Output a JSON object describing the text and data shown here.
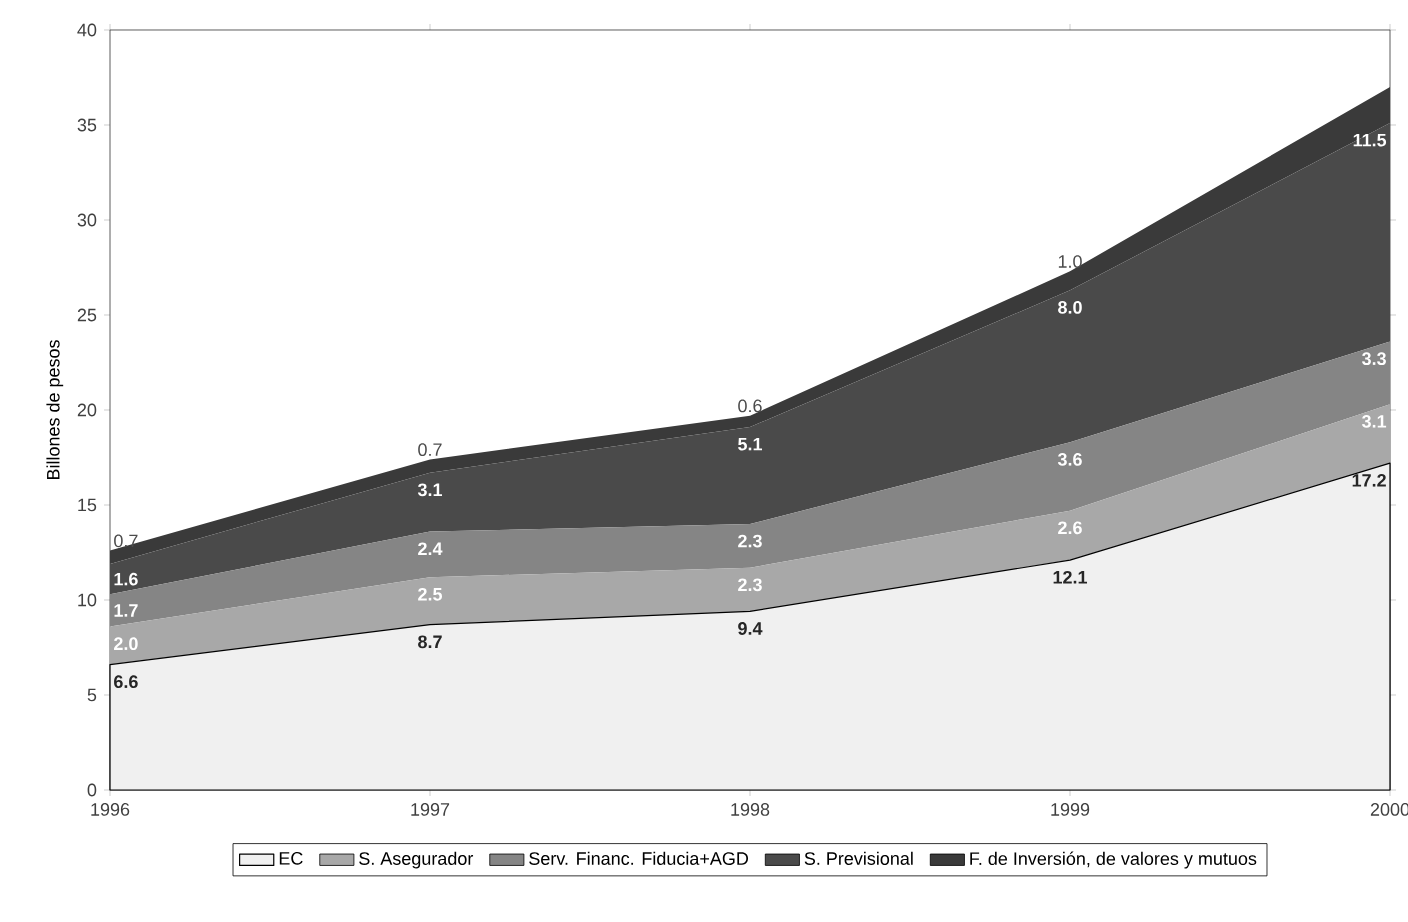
{
  "chart_data": {
    "type": "area",
    "stacked": true,
    "ylabel": "Billones de pesos",
    "x": [
      1996,
      1997,
      1998,
      1999,
      2000
    ],
    "xlim": [
      1996,
      2000
    ],
    "xticks": [
      1996,
      1997,
      1998,
      1999,
      2000
    ],
    "ylim": [
      0,
      40
    ],
    "yticks": [
      0,
      5,
      10,
      15,
      20,
      25,
      30,
      35,
      40
    ],
    "grid": false,
    "legend": "bottom",
    "series": [
      {
        "name": "EC",
        "color": "#f0f0f0",
        "values": [
          6.6,
          8.7,
          9.4,
          12.1,
          17.2
        ],
        "value_labels": [
          "6.6",
          "8.7",
          "9.4",
          "12.1",
          "17.2"
        ]
      },
      {
        "name": "S. Asegurador",
        "color": "#a8a8a8",
        "values": [
          2.0,
          2.5,
          2.3,
          2.6,
          3.1
        ],
        "value_labels": [
          "2.0",
          "2.5",
          "2.3",
          "2.6",
          "3.1"
        ]
      },
      {
        "name": "Serv. Financ. Fiducia+AGD",
        "color": "#858585",
        "values": [
          1.7,
          2.4,
          2.3,
          3.6,
          3.3
        ],
        "value_labels": [
          "1.7",
          "2.4",
          "2.3",
          "3.6",
          "3.3"
        ]
      },
      {
        "name": "S. Previsional",
        "color": "#4a4a4a",
        "values": [
          1.6,
          3.1,
          5.1,
          8.0,
          11.5
        ],
        "value_labels": [
          "1.6",
          "3.1",
          "5.1",
          "8.0",
          "11.5"
        ]
      },
      {
        "name": "F. de Inversión, de valores y mutuos",
        "color": "#3a3a3a",
        "values": [
          0.7,
          0.7,
          0.6,
          1.0,
          1.9
        ],
        "value_labels": [
          "0.7",
          "0.7",
          "0.6",
          "1.0",
          null
        ]
      }
    ]
  }
}
